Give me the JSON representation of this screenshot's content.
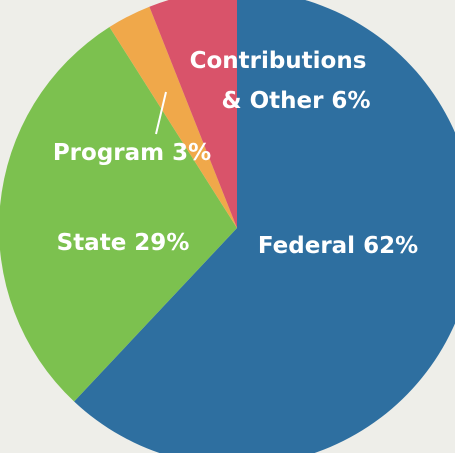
{
  "chart_data": {
    "type": "pie",
    "title": "",
    "slices": [
      {
        "name": "Federal",
        "value": 62,
        "label": "Federal 62%",
        "color": "#2e6fa0"
      },
      {
        "name": "State",
        "value": 29,
        "label": "State 29%",
        "color": "#7cc14f"
      },
      {
        "name": "Program",
        "value": 3,
        "label": "Program 3%",
        "color": "#f0a84a"
      },
      {
        "name": "Contributions & Other",
        "value": 6,
        "label_line1": "Contributions",
        "label_line2": "& Other 6%",
        "color": "#d9536a"
      }
    ],
    "start": "top",
    "direction": "clockwise",
    "legend": "none",
    "background_color": "#eeeee9"
  }
}
